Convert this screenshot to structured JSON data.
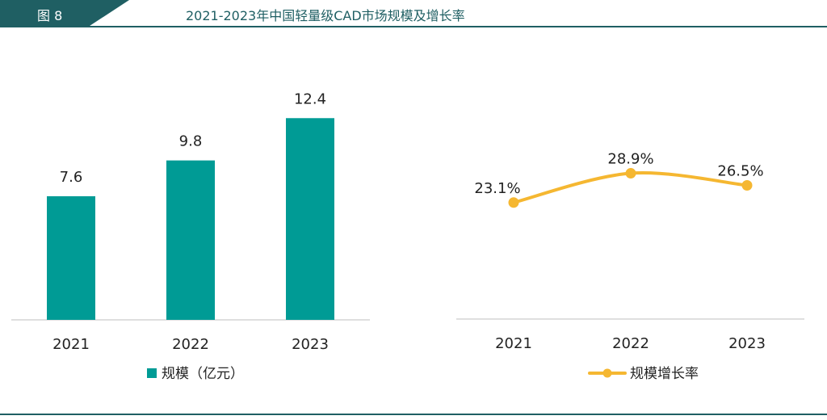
{
  "figure_label": "图 8",
  "title": "2021-2023年中国轻量级CAD市场规模及增长率",
  "colors": {
    "header": "#1f5f63",
    "bar": "#009b95",
    "line": "#f5b731"
  },
  "chart_data": [
    {
      "type": "bar",
      "categories": [
        "2021",
        "2022",
        "2023"
      ],
      "series": [
        {
          "name": "规模（亿元）",
          "values": [
            7.6,
            9.8,
            12.4
          ]
        }
      ],
      "ylim": [
        0,
        14.3
      ],
      "grid": false,
      "legend": "bottom-center"
    },
    {
      "type": "line",
      "categories": [
        "2021",
        "2022",
        "2023"
      ],
      "series": [
        {
          "name": "规模增长率",
          "values": [
            23.1,
            28.9,
            26.5
          ],
          "labels": [
            "23.1%",
            "28.9%",
            "26.5%"
          ]
        }
      ],
      "ylim": [
        0,
        35
      ],
      "grid": false,
      "legend": "bottom-center"
    }
  ]
}
